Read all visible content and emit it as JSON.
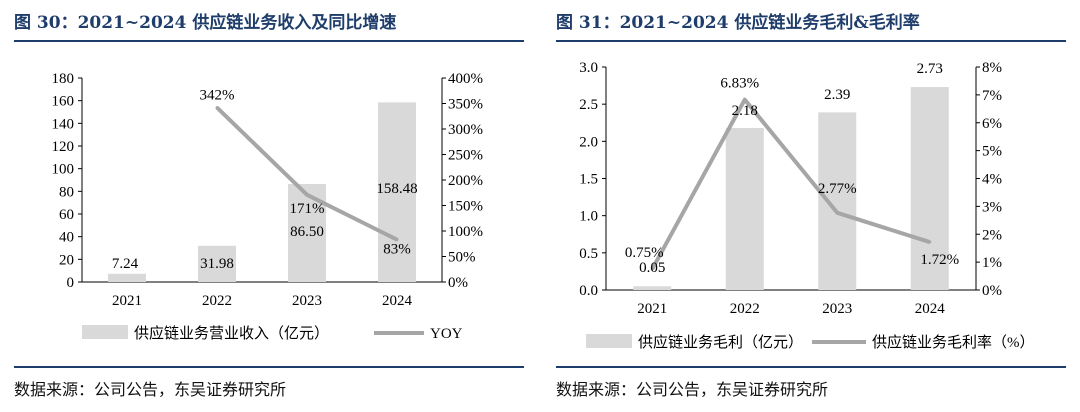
{
  "left": {
    "title": "图 30：2021~2024 供应链业务收入及同比增速",
    "source": "数据来源：公司公告，东吴证券研究所"
  },
  "right": {
    "title": "图 31：2021~2024 供应链业务毛利&毛利率",
    "source": "数据来源：公司公告，东吴证券研究所"
  },
  "colors": {
    "bar": "#d9d9d9",
    "line": "#a6a6a6",
    "axis": "#000000",
    "title": "#1f3d6b"
  },
  "chart_data": [
    {
      "type": "bar",
      "categories": [
        "2021",
        "2022",
        "2023",
        "2024"
      ],
      "series": [
        {
          "name": "供应链业务营业收入（亿元）",
          "type": "bar",
          "axis": "left",
          "values": [
            7.24,
            31.98,
            86.5,
            158.48
          ],
          "labels": [
            "7.24",
            "31.98",
            "86.50",
            "158.48"
          ]
        },
        {
          "name": "YOY",
          "type": "line",
          "axis": "right",
          "values": [
            null,
            342,
            171,
            83
          ],
          "labels": [
            null,
            "342%",
            "171%",
            "83%"
          ]
        }
      ],
      "ylim_left": [
        0,
        180
      ],
      "yticks_left": [
        "0",
        "20",
        "40",
        "60",
        "80",
        "100",
        "120",
        "140",
        "160",
        "180"
      ],
      "ylim_right": [
        0,
        400
      ],
      "yticks_right": [
        "0%",
        "50%",
        "100%",
        "150%",
        "200%",
        "250%",
        "300%",
        "350%",
        "400%"
      ],
      "legend": [
        "供应链业务营业收入（亿元）",
        "YOY"
      ]
    },
    {
      "type": "bar",
      "categories": [
        "2021",
        "2022",
        "2023",
        "2024"
      ],
      "series": [
        {
          "name": "供应链业务毛利（亿元）",
          "type": "bar",
          "axis": "left",
          "values": [
            0.05,
            2.18,
            2.39,
            2.73
          ],
          "labels": [
            "0.05",
            "2.18",
            "2.39",
            "2.73"
          ]
        },
        {
          "name": "供应链业务毛利率（%）",
          "type": "line",
          "axis": "right",
          "values": [
            0.75,
            6.83,
            2.77,
            1.72
          ],
          "labels": [
            "0.75%",
            "6.83%",
            "2.77%",
            "1.72%"
          ]
        }
      ],
      "ylim_left": [
        0,
        3
      ],
      "yticks_left": [
        "0.0",
        "0.5",
        "1.0",
        "1.5",
        "2.0",
        "2.5",
        "3.0"
      ],
      "ylim_right": [
        0,
        8
      ],
      "yticks_right": [
        "0%",
        "1%",
        "2%",
        "3%",
        "4%",
        "5%",
        "6%",
        "7%",
        "8%"
      ],
      "legend": [
        "供应链业务毛利（亿元）",
        "供应链业务毛利率（%）"
      ]
    }
  ]
}
